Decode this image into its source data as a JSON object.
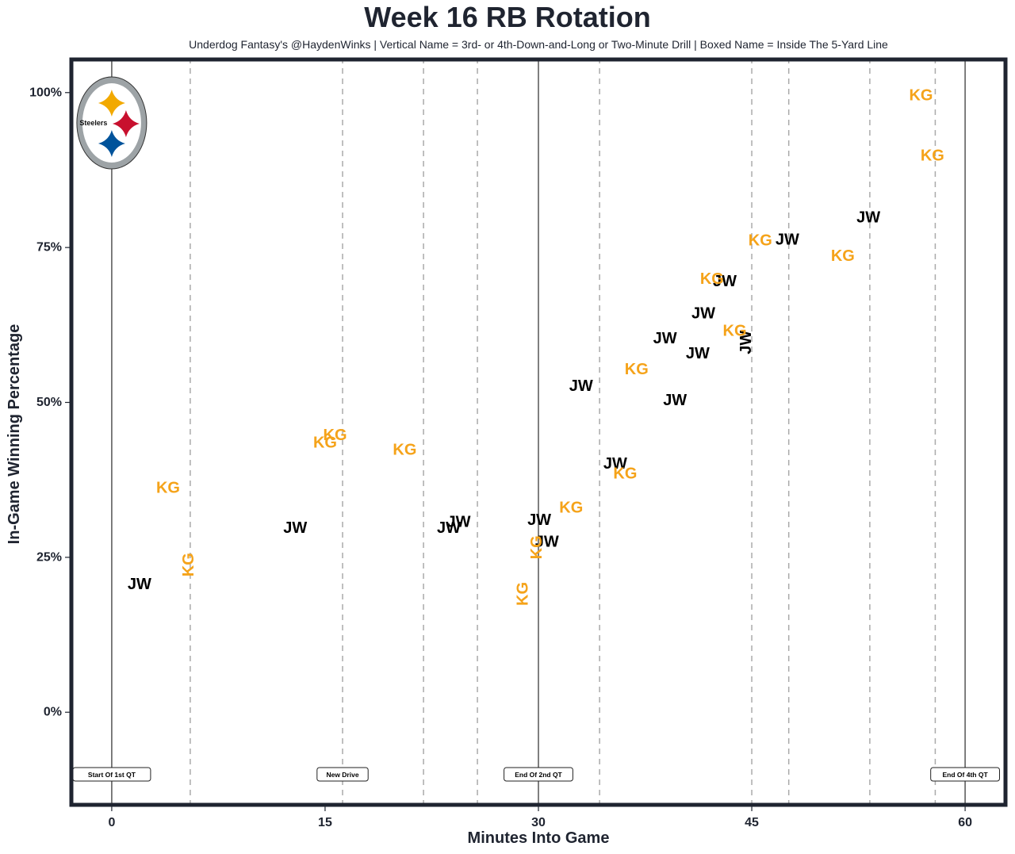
{
  "title": "Week 16 RB Rotation",
  "subtitle": "Underdog Fantasy's @HaydenWinks | Vertical Name = 3rd- or 4th-Down-and-Long or Two-Minute Drill | Boxed Name = Inside The 5-Yard Line",
  "team_logo": {
    "name": "Steelers",
    "colors": {
      "ring": "#9da3a6",
      "gold": "#f2a900",
      "red": "#c8102e",
      "blue": "#00539b"
    }
  },
  "colors": {
    "JW": "#000000",
    "KG": "#f5a31a",
    "frame": "#1f2430",
    "drive_line": "#aaaaaa",
    "quarter_line": "#555555"
  },
  "chart_data": {
    "type": "scatter",
    "title": "Week 16 RB Rotation",
    "xlabel": "Minutes Into Game",
    "ylabel": "In-Game Winning Percentage",
    "xlim": [
      -2.95,
      62.95
    ],
    "ylim": [
      -15.2,
      105.6
    ],
    "xticks": [
      0,
      15,
      30,
      45,
      60
    ],
    "xtick_labels": [
      "0",
      "15",
      "30",
      "45",
      "60"
    ],
    "yticks": [
      0,
      25,
      50,
      75,
      100
    ],
    "ytick_labels": [
      "0%",
      "25%",
      "50%",
      "75%",
      "100%"
    ],
    "grid": false,
    "quarter_lines": [
      0,
      30,
      60
    ],
    "drive_lines": [
      5.52,
      16.23,
      21.92,
      25.71,
      34.3,
      45.0,
      47.6,
      53.3,
      57.9
    ],
    "events": [
      {
        "x": 0,
        "label": "Start Of 1st QT"
      },
      {
        "x": 16.23,
        "label": "New Drive"
      },
      {
        "x": 30,
        "label": "End Of 2nd QT"
      },
      {
        "x": 60,
        "label": "End Of 4th QT"
      }
    ],
    "series": [
      {
        "name": "JW",
        "points": [
          {
            "x": 1.95,
            "y": 20.6,
            "vertical": false
          },
          {
            "x": 12.9,
            "y": 29.7,
            "vertical": false
          },
          {
            "x": 23.7,
            "y": 29.7,
            "vertical": false
          },
          {
            "x": 24.4,
            "y": 30.7,
            "vertical": false
          },
          {
            "x": 30.06,
            "y": 31.0,
            "vertical": false
          },
          {
            "x": 30.6,
            "y": 27.5,
            "vertical": false
          },
          {
            "x": 33.0,
            "y": 52.6,
            "vertical": false
          },
          {
            "x": 35.4,
            "y": 40.1,
            "vertical": false
          },
          {
            "x": 38.9,
            "y": 60.3,
            "vertical": false
          },
          {
            "x": 39.6,
            "y": 50.3,
            "vertical": false
          },
          {
            "x": 41.2,
            "y": 57.9,
            "vertical": false
          },
          {
            "x": 41.6,
            "y": 64.3,
            "vertical": false
          },
          {
            "x": 43.1,
            "y": 69.5,
            "vertical": false
          },
          {
            "x": 44.6,
            "y": 59.7,
            "vertical": true
          },
          {
            "x": 47.5,
            "y": 76.2,
            "vertical": false
          },
          {
            "x": 53.2,
            "y": 79.8,
            "vertical": false
          }
        ]
      },
      {
        "name": "KG",
        "points": [
          {
            "x": 3.96,
            "y": 36.2,
            "vertical": false
          },
          {
            "x": 5.4,
            "y": 23.8,
            "vertical": true
          },
          {
            "x": 15.0,
            "y": 43.5,
            "vertical": false
          },
          {
            "x": 15.7,
            "y": 44.7,
            "vertical": false
          },
          {
            "x": 20.6,
            "y": 42.3,
            "vertical": false
          },
          {
            "x": 28.9,
            "y": 19.1,
            "vertical": true
          },
          {
            "x": 29.9,
            "y": 26.6,
            "vertical": true
          },
          {
            "x": 32.3,
            "y": 33.0,
            "vertical": false
          },
          {
            "x": 36.1,
            "y": 38.5,
            "vertical": false
          },
          {
            "x": 36.9,
            "y": 55.3,
            "vertical": false
          },
          {
            "x": 42.2,
            "y": 69.9,
            "vertical": false
          },
          {
            "x": 43.8,
            "y": 61.5,
            "vertical": false
          },
          {
            "x": 45.6,
            "y": 76.1,
            "vertical": false
          },
          {
            "x": 51.4,
            "y": 73.6,
            "vertical": false
          },
          {
            "x": 56.9,
            "y": 99.5,
            "vertical": false
          },
          {
            "x": 57.7,
            "y": 89.8,
            "vertical": false
          }
        ]
      }
    ]
  }
}
